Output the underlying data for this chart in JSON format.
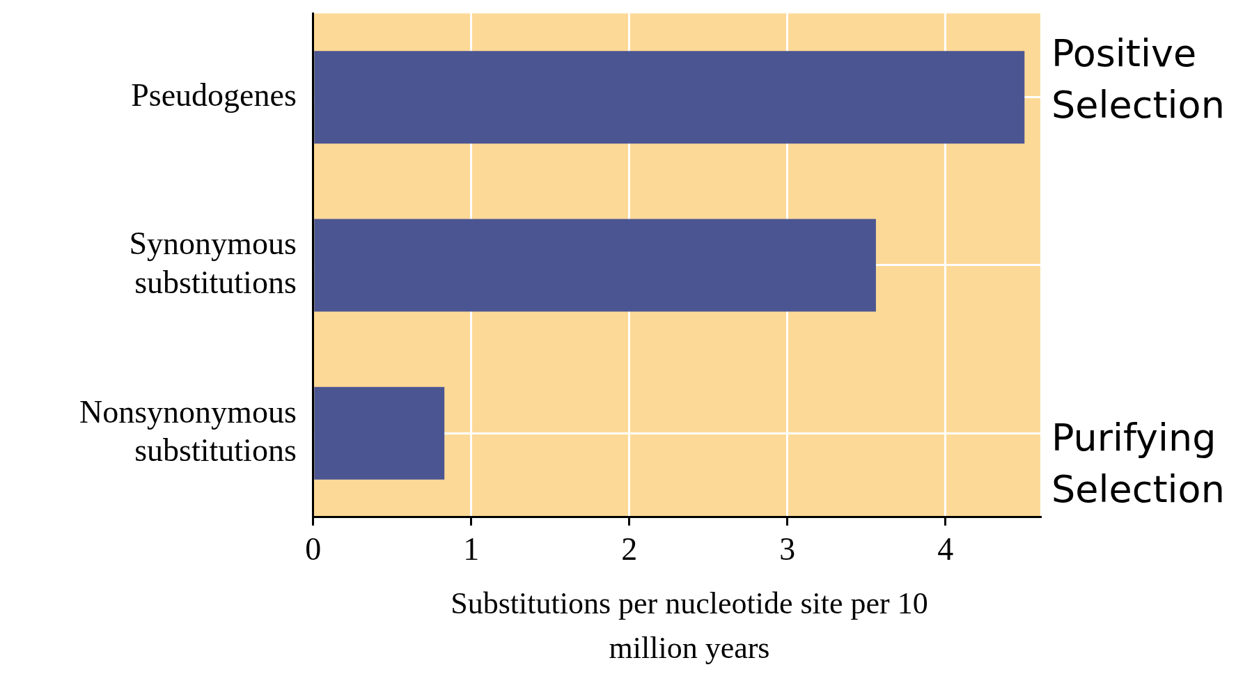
{
  "chart_data": {
    "type": "bar",
    "orientation": "horizontal",
    "xlabel": "Substitutions per nucleotide site per 10 million years",
    "categories": [
      "Pseudogenes",
      "Synonymous substitutions",
      "Nonsynonymous substitutions"
    ],
    "values": [
      4.5,
      3.56,
      0.83
    ],
    "color": "#4b5592",
    "xlim": [
      0,
      4.6
    ],
    "xticks": [
      0,
      1,
      2,
      3,
      4
    ],
    "grid": true,
    "annotations": [
      "Positive Selection",
      "Purifying Selection"
    ]
  }
}
